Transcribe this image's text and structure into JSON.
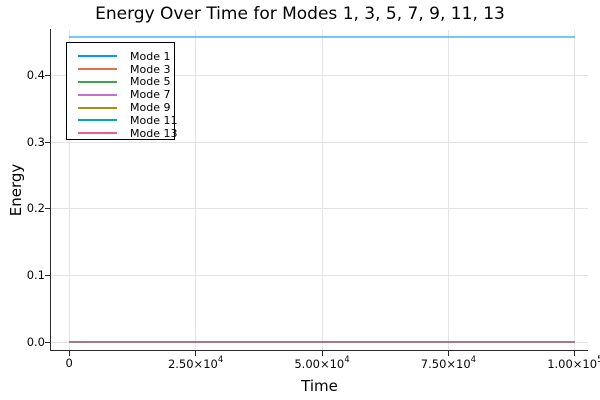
{
  "chart_data": {
    "type": "line",
    "title": "Energy Over Time for Modes 1, 3, 5, 7, 9, 11, 13",
    "xlabel": "Time",
    "ylabel": "Energy",
    "legend_position": "top-left",
    "grid": true,
    "xlim": [
      -3600,
      102600
    ],
    "ylim": [
      -0.0113,
      0.468
    ],
    "x_data_range": [
      0,
      100000
    ],
    "x_ticks": [
      {
        "value": 0,
        "label": "0",
        "base": "0",
        "exp": ""
      },
      {
        "value": 25000,
        "label": "2.50×10⁴",
        "base": "2.50×10",
        "exp": "4"
      },
      {
        "value": 50000,
        "label": "5.00×10⁴",
        "base": "5.00×10",
        "exp": "4"
      },
      {
        "value": 75000,
        "label": "7.50×10⁴",
        "base": "7.50×10",
        "exp": "4"
      },
      {
        "value": 100000,
        "label": "1.00×10⁵",
        "base": "1.00×10",
        "exp": "5"
      }
    ],
    "y_ticks": [
      {
        "value": 0.0,
        "label": "0.0"
      },
      {
        "value": 0.1,
        "label": "0.1"
      },
      {
        "value": 0.2,
        "label": "0.2"
      },
      {
        "value": 0.3,
        "label": "0.3"
      },
      {
        "value": 0.4,
        "label": "0.4"
      }
    ],
    "series": [
      {
        "name": "Mode 1",
        "color": "#009AFA",
        "constant_value": 0.457
      },
      {
        "name": "Mode 3",
        "color": "#E26F46",
        "constant_value": 0.001
      },
      {
        "name": "Mode 5",
        "color": "#3EA44E",
        "constant_value": 0.001
      },
      {
        "name": "Mode 7",
        "color": "#C271D2",
        "constant_value": 0.001
      },
      {
        "name": "Mode 9",
        "color": "#AC8D18",
        "constant_value": 0.001
      },
      {
        "name": "Mode 11",
        "color": "#00AAAE",
        "constant_value": 0.001
      },
      {
        "name": "Mode 13",
        "color": "#ED5D92",
        "constant_value": 0.001
      }
    ],
    "colors": {
      "grid": "#e4e4e4",
      "spine": "#2a2a2a",
      "tick": "#2a2a2a",
      "text": "#000000",
      "background": "#ffffff"
    }
  }
}
